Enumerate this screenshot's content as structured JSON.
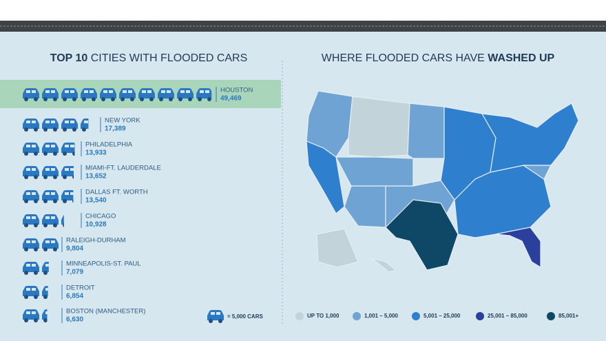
{
  "left": {
    "title_bold": "TOP 10",
    "title_rest": " CITIES WITH FLOODED CARS",
    "unit": {
      "value": 5000,
      "label": "= 5,000 CARS"
    },
    "cities": [
      {
        "name": "HOUSTON",
        "value": 49469,
        "value_label": "49,469"
      },
      {
        "name": "NEW YORK",
        "value": 17389,
        "value_label": "17,389"
      },
      {
        "name": "PHILADELPHIA",
        "value": 13933,
        "value_label": "13,933"
      },
      {
        "name": "MIAMI-FT. LAUDERDALE",
        "value": 13652,
        "value_label": "13,652"
      },
      {
        "name": "DALLAS FT. WORTH",
        "value": 13540,
        "value_label": "13,540"
      },
      {
        "name": "CHICAGO",
        "value": 10928,
        "value_label": "10,928"
      },
      {
        "name": "RALEIGH-DURHAM",
        "value": 9804,
        "value_label": "9,804"
      },
      {
        "name": "MINNEAPOLIS-ST. PAUL",
        "value": 7079,
        "value_label": "7,079"
      },
      {
        "name": "DETROIT",
        "value": 6854,
        "value_label": "6,854"
      },
      {
        "name": "BOSTON (MANCHESTER)",
        "value": 6630,
        "value_label": "6,630"
      }
    ]
  },
  "right": {
    "title_rest": "WHERE FLOODED CARS HAVE ",
    "title_bold": "WASHED UP",
    "legend": [
      {
        "label": "UP TO 1,000",
        "color": "#c3d3da"
      },
      {
        "label": "1,001 – 5,000",
        "color": "#6fa3d3"
      },
      {
        "label": "5,001 – 25,000",
        "color": "#2f7fcf"
      },
      {
        "label": "25,001 – 85,000",
        "color": "#2b3f9c"
      },
      {
        "label": "85,001+",
        "color": "#0f4866"
      }
    ]
  }
}
